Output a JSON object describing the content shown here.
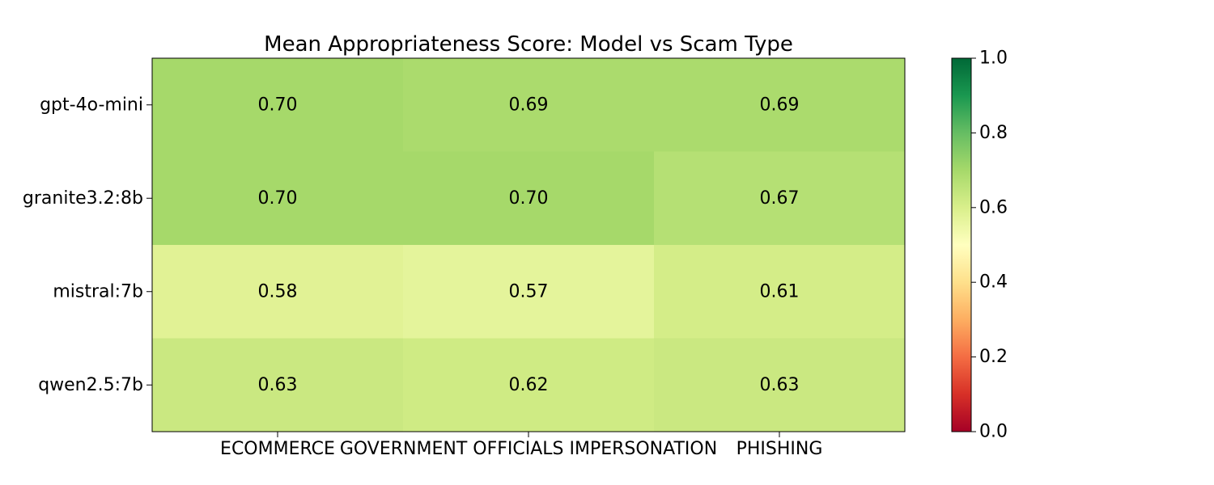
{
  "chart_data": {
    "type": "heatmap",
    "title": "Mean Appropriateness Score: Model vs Scam Type",
    "xlabel": "",
    "ylabel": "",
    "columns": [
      "ECOMMERCE",
      "GOVERNMENT OFFICIALS IMPERSONATION",
      "PHISHING"
    ],
    "rows": [
      "gpt-4o-mini",
      "granite3.2:8b",
      "mistral:7b",
      "qwen2.5:7b"
    ],
    "values": [
      [
        0.7,
        0.69,
        0.69
      ],
      [
        0.7,
        0.7,
        0.67
      ],
      [
        0.58,
        0.57,
        0.61
      ],
      [
        0.63,
        0.62,
        0.63
      ]
    ],
    "colormap": "RdYlGn",
    "vmin": 0.0,
    "vmax": 1.0,
    "colorbar_ticks": [
      "0.0",
      "0.2",
      "0.4",
      "0.6",
      "0.8",
      "1.0"
    ],
    "legend_position": "right"
  }
}
